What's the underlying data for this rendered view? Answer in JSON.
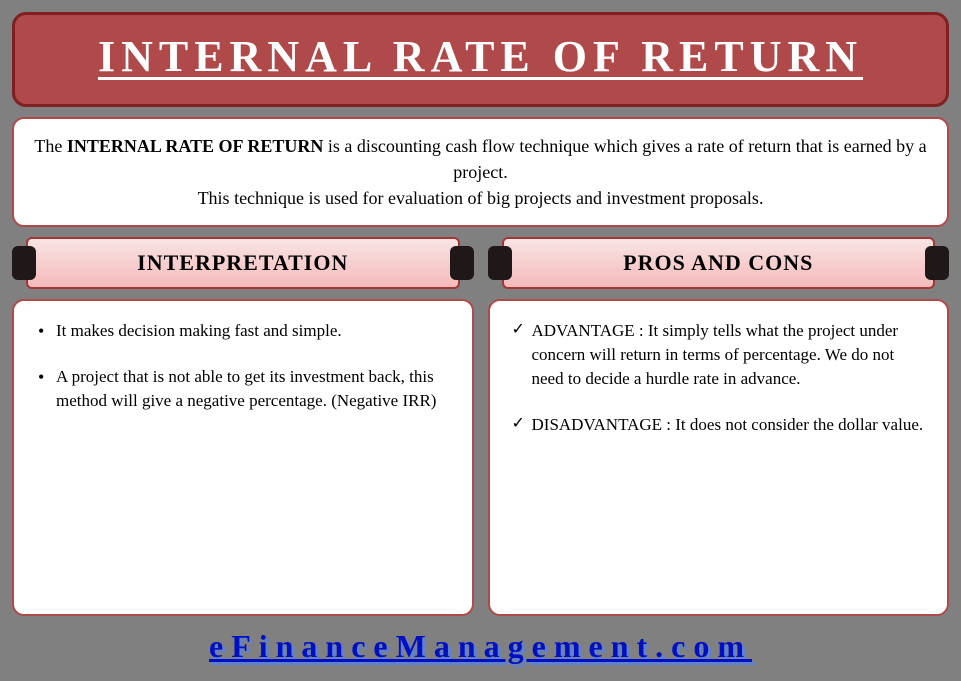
{
  "title": "INTERNAL RATE OF RETURN",
  "definition": {
    "line1_pre": "The ",
    "line1_bold": "INTERNAL RATE OF RETURN",
    "line1_post": " is a discounting cash flow technique which gives a rate of return that is earned by a project.",
    "line2": "This technique is used for evaluation of big projects and investment proposals."
  },
  "left": {
    "header": "INTERPRETATION",
    "items": [
      "It makes decision making fast and simple.",
      "A project that is not able to get its investment back, this method will give a negative percentage. (Negative IRR)"
    ]
  },
  "right": {
    "header": "PROS AND CONS",
    "items": [
      "ADVANTAGE : It simply tells what the project under concern will return in terms of percentage. We do not need to decide a hurdle rate in advance.",
      "DISADVANTAGE : It does not consider the dollar value."
    ]
  },
  "footer": "eFinanceManagement.com",
  "colors": {
    "page_bg": "#808080",
    "title_bg": "#b04a4a",
    "title_border": "#802020",
    "title_text": "#ffffff",
    "box_border": "#b04a4a",
    "plaque_gradient_top": "#f8e4e4",
    "plaque_gradient_bottom": "#f5baba",
    "endcap": "#201818",
    "link_color": "#0010c0",
    "link_shadow": "#6080d0"
  }
}
